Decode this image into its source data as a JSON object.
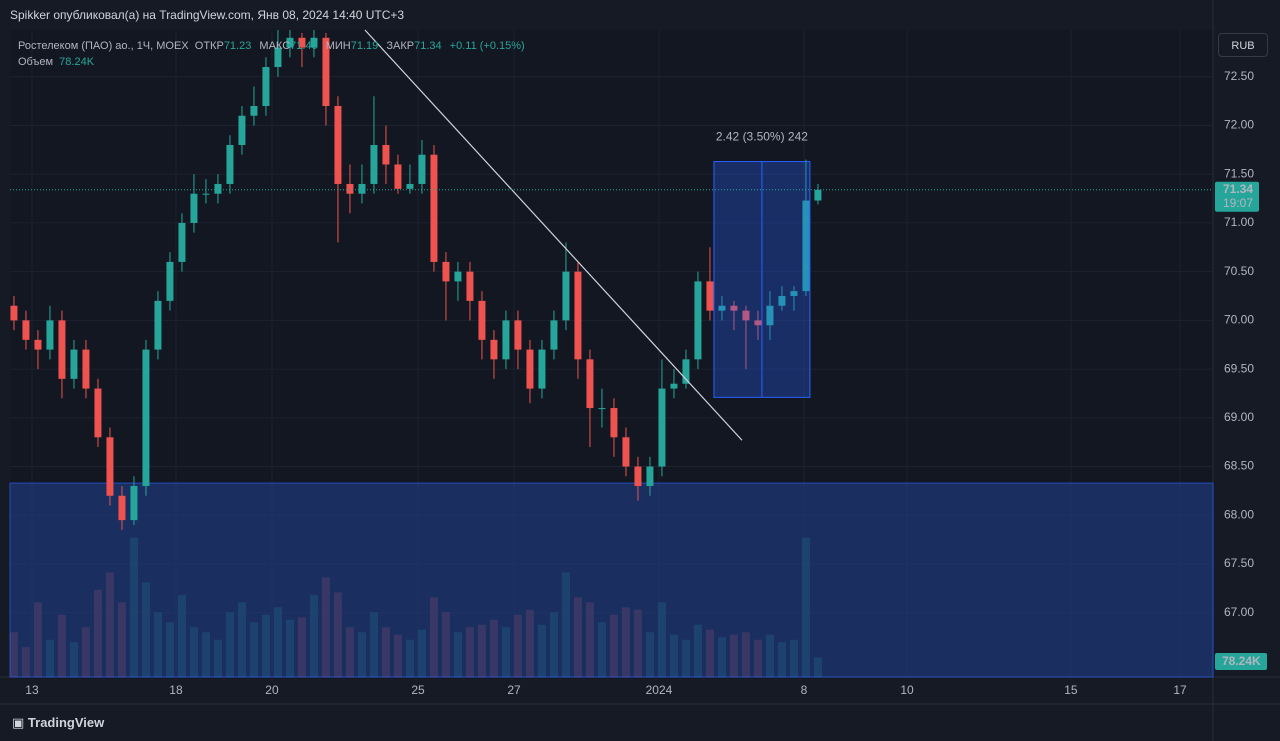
{
  "header": {
    "published": "Spikker опубликовал(а) на TradingView.com, Янв 08, 2024 14:40 UTC+3",
    "brand": "TradingView"
  },
  "chart_data": {
    "type": "candlestick",
    "symbol": "Ростелеком (ПАО) ао., 1Ч, MOEX",
    "ohlc_legend": [
      {
        "label": "ОТКР",
        "value": "71.23"
      },
      {
        "label": "МАКС",
        "value": "71.40"
      },
      {
        "label": "МИН",
        "value": "71.19"
      },
      {
        "label": "ЗАКР",
        "value": "71.34"
      }
    ],
    "change": "+0.11 (+0.15%)",
    "volume_title": "Объем",
    "volume_last_label": "78.24K",
    "currency": "RUB",
    "countdown": "19:07",
    "up_color": "#26a69a",
    "down_color": "#ef5350",
    "categories": [
      null,
      null,
      null,
      null,
      null,
      null,
      null,
      null,
      null,
      null,
      null,
      null,
      null,
      null,
      null,
      null,
      null,
      null,
      null,
      null,
      null,
      null,
      null,
      null,
      null,
      null,
      null,
      null,
      null,
      null,
      null,
      null,
      null,
      null,
      null,
      null,
      null,
      null,
      null,
      null,
      null,
      null,
      null,
      null,
      null,
      null,
      null,
      null,
      null,
      null,
      null,
      null,
      null,
      null,
      null,
      null,
      null,
      null,
      null,
      null,
      null,
      null,
      null,
      null,
      null,
      null,
      null,
      null
    ],
    "open": [
      70.15,
      70.0,
      69.8,
      69.7,
      70.0,
      69.4,
      69.7,
      69.3,
      68.8,
      68.2,
      67.95,
      68.3,
      69.7,
      70.2,
      70.6,
      71.0,
      71.3,
      71.3,
      71.4,
      71.8,
      72.1,
      72.2,
      72.6,
      72.8,
      72.9,
      72.8,
      72.9,
      72.2,
      71.4,
      71.3,
      71.4,
      71.8,
      71.6,
      71.35,
      71.4,
      71.7,
      70.6,
      70.4,
      70.5,
      70.2,
      69.8,
      69.6,
      70.0,
      69.7,
      69.3,
      69.7,
      70.0,
      70.5,
      69.6,
      69.1,
      69.1,
      68.8,
      68.5,
      68.3,
      68.5,
      69.3,
      69.35,
      69.6,
      70.4,
      70.1,
      70.15,
      70.1,
      70.0,
      69.95,
      70.15,
      70.25,
      70.3,
      71.23
    ],
    "high": [
      70.25,
      70.1,
      69.9,
      70.15,
      70.1,
      69.8,
      69.8,
      69.4,
      68.9,
      68.3,
      68.4,
      69.8,
      70.3,
      70.7,
      71.1,
      71.5,
      71.45,
      71.5,
      71.9,
      72.2,
      72.4,
      72.7,
      72.98,
      72.98,
      72.95,
      72.98,
      72.95,
      72.3,
      71.6,
      71.6,
      72.3,
      72.0,
      71.7,
      71.6,
      71.85,
      71.8,
      70.7,
      70.6,
      70.6,
      70.3,
      69.9,
      70.1,
      70.1,
      69.8,
      69.8,
      70.1,
      70.8,
      70.6,
      69.7,
      69.3,
      69.2,
      68.9,
      68.6,
      68.6,
      69.6,
      69.5,
      69.7,
      70.5,
      70.75,
      70.25,
      70.2,
      70.15,
      70.1,
      70.3,
      70.35,
      70.35,
      71.65,
      71.4
    ],
    "low": [
      69.9,
      69.7,
      69.5,
      69.6,
      69.2,
      69.3,
      69.2,
      68.7,
      68.1,
      67.85,
      67.9,
      68.2,
      69.6,
      70.1,
      70.5,
      70.9,
      71.2,
      71.2,
      71.3,
      71.7,
      72.0,
      72.1,
      72.5,
      72.7,
      72.6,
      72.7,
      72.0,
      70.8,
      71.1,
      71.2,
      71.3,
      71.4,
      71.3,
      71.3,
      71.3,
      70.5,
      70.0,
      70.2,
      70.0,
      69.6,
      69.4,
      69.5,
      69.5,
      69.15,
      69.2,
      69.6,
      69.9,
      69.4,
      68.7,
      68.9,
      68.6,
      68.4,
      68.15,
      68.2,
      68.4,
      69.2,
      69.3,
      69.5,
      70.0,
      70.0,
      69.9,
      69.5,
      69.8,
      69.8,
      70.1,
      70.1,
      70.25,
      71.19
    ],
    "close": [
      70.0,
      69.8,
      69.7,
      70.0,
      69.4,
      69.7,
      69.3,
      68.8,
      68.2,
      67.95,
      68.3,
      69.7,
      70.2,
      70.6,
      71.0,
      71.3,
      71.3,
      71.4,
      71.8,
      72.1,
      72.2,
      72.6,
      72.8,
      72.9,
      72.8,
      72.9,
      72.2,
      71.4,
      71.3,
      71.4,
      71.8,
      71.6,
      71.35,
      71.4,
      71.7,
      70.6,
      70.4,
      70.5,
      70.2,
      69.8,
      69.6,
      70.0,
      69.7,
      69.3,
      69.7,
      70.0,
      70.5,
      69.6,
      69.1,
      69.1,
      68.8,
      68.5,
      68.3,
      68.5,
      69.3,
      69.35,
      69.6,
      70.4,
      70.1,
      70.15,
      70.1,
      70.0,
      69.95,
      70.15,
      70.25,
      70.3,
      71.23,
      71.34
    ],
    "volume": [
      180000,
      120000,
      300000,
      150000,
      250000,
      140000,
      200000,
      350000,
      420000,
      300000,
      560000,
      380000,
      260000,
      220000,
      330000,
      200000,
      180000,
      150000,
      260000,
      300000,
      220000,
      250000,
      280000,
      230000,
      240000,
      330000,
      400000,
      340000,
      200000,
      180000,
      260000,
      200000,
      170000,
      150000,
      190000,
      320000,
      260000,
      180000,
      200000,
      210000,
      230000,
      200000,
      250000,
      270000,
      210000,
      260000,
      420000,
      320000,
      300000,
      220000,
      250000,
      280000,
      270000,
      180000,
      300000,
      170000,
      150000,
      210000,
      190000,
      160000,
      170000,
      180000,
      150000,
      170000,
      140000,
      150000,
      560000,
      78240
    ],
    "vlim": [
      0,
      2600000
    ],
    "xlim": [
      -0.33,
      99.92
    ],
    "ylim": [
      66.34,
      72.98
    ],
    "yticks": [
      {
        "value": 67,
        "label": "67.00"
      },
      {
        "value": 67.5,
        "label": "67.50"
      },
      {
        "value": 68,
        "label": "68.00"
      },
      {
        "value": 68.5,
        "label": "68.50"
      },
      {
        "value": 69,
        "label": "69.00"
      },
      {
        "value": 69.5,
        "label": "69.50"
      },
      {
        "value": 70,
        "label": "70.00"
      },
      {
        "value": 70.5,
        "label": "70.50"
      },
      {
        "value": 71,
        "label": "71.00"
      },
      {
        "value": 71.5,
        "label": "71.50"
      },
      {
        "value": 72,
        "label": "72.00"
      },
      {
        "value": 72.5,
        "label": "72.50"
      }
    ],
    "xticks": [
      {
        "value": 1.5,
        "label": "13"
      },
      {
        "value": 13.5,
        "label": "18"
      },
      {
        "value": 21.5,
        "label": "20"
      },
      {
        "value": 33.67,
        "label": "25"
      },
      {
        "value": 41.67,
        "label": "27"
      },
      {
        "value": 53.75,
        "label": "2024"
      },
      {
        "value": 65.83,
        "label": "8"
      },
      {
        "value": 74.42,
        "label": "10"
      },
      {
        "value": 88.08,
        "label": "15"
      },
      {
        "value": 97.17,
        "label": "17"
      }
    ],
    "grid": true,
    "zone": {
      "y": [
        66.34,
        68.33
      ]
    },
    "trendline": {
      "x": [
        29.25,
        60.67
      ],
      "y": [
        72.98,
        68.77
      ]
    },
    "measure": {
      "x": [
        58.33,
        66.33
      ],
      "y": [
        69.21,
        71.63
      ],
      "label": "2.42 (3.50%) 242"
    }
  }
}
